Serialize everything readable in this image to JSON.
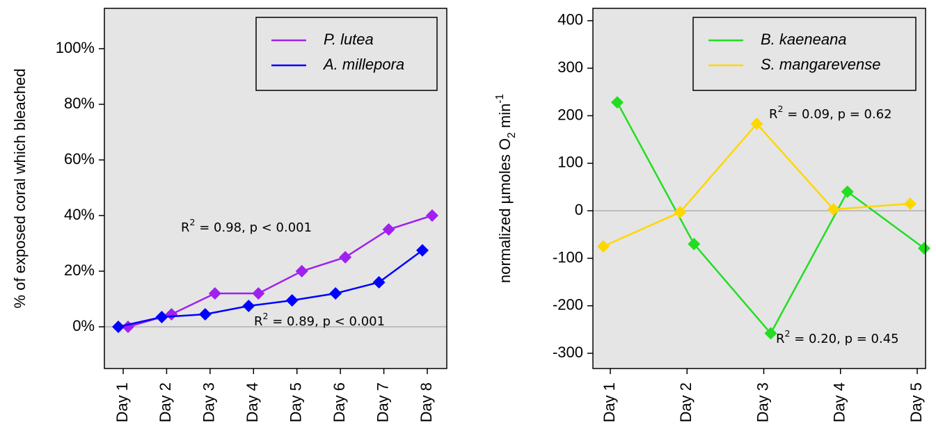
{
  "chart_data": [
    {
      "type": "line",
      "y_label": [
        {
          "text": "% of exposed coral which bleached"
        }
      ],
      "categories": [
        "Day 1",
        "Day 2",
        "Day 3",
        "Day 4",
        "Day 5",
        "Day 6",
        "Day 7",
        "Day 8"
      ],
      "series": [
        {
          "name": "P. lutea",
          "color": "#a020f0",
          "values": [
            0,
            4.5,
            12,
            12,
            20,
            25,
            35,
            40
          ]
        },
        {
          "name": "A. millepora",
          "color": "#0000ff",
          "values": [
            0,
            3.5,
            4.5,
            7.5,
            9.5,
            12,
            16,
            27.5
          ]
        }
      ],
      "ylim": [
        -15,
        114.5
      ],
      "yticks": [
        {
          "value": 0,
          "label": "0%"
        },
        {
          "value": 20,
          "label": "20%"
        },
        {
          "value": 40,
          "label": "40%"
        },
        {
          "value": 60,
          "label": "60%"
        },
        {
          "value": 80,
          "label": "80%"
        },
        {
          "value": 100,
          "label": "100%"
        }
      ],
      "reference_line": 0,
      "legend": "top-right",
      "annotations": [
        {
          "color": "#a020f0",
          "parts": [
            {
              "text": "R"
            },
            {
              "text": "2",
              "shift": "super"
            },
            {
              "text": " = 0.98, p < 0.001"
            }
          ]
        },
        {
          "color": "#1f3864",
          "parts": [
            {
              "text": "R"
            },
            {
              "text": "2",
              "shift": "super"
            },
            {
              "text": " = 0.89, p < 0.001"
            }
          ]
        }
      ]
    },
    {
      "type": "line",
      "y_label": [
        {
          "text": "normalized µmoles O"
        },
        {
          "text": "2",
          "shift": "sub"
        },
        {
          "text": " min"
        },
        {
          "text": "-1",
          "shift": "super"
        }
      ],
      "categories": [
        "Day 1",
        "Day 2",
        "Day 3",
        "Day 4",
        "Day 5"
      ],
      "series": [
        {
          "name": "B. kaeneana",
          "color": "#22dd22",
          "values": [
            228,
            -70,
            -258,
            40,
            -79
          ]
        },
        {
          "name": "S. mangarevense",
          "color": "#ffd700",
          "values": [
            -75,
            -3,
            183,
            3,
            15
          ]
        }
      ],
      "ylim": [
        -332,
        426
      ],
      "yticks": [
        -300,
        -200,
        -100,
        0,
        100,
        200,
        300,
        400
      ],
      "reference_line": 0,
      "legend": "top-right",
      "annotations": [
        {
          "color": "#d4a017",
          "parts": [
            {
              "text": "R"
            },
            {
              "text": "2",
              "shift": "super"
            },
            {
              "text": " = 0.09, p = 0.62"
            }
          ]
        },
        {
          "color": "#22bb44",
          "parts": [
            {
              "text": "R"
            },
            {
              "text": "2",
              "shift": "super"
            },
            {
              "text": " = 0.20, p = 0.45"
            }
          ]
        }
      ]
    }
  ]
}
